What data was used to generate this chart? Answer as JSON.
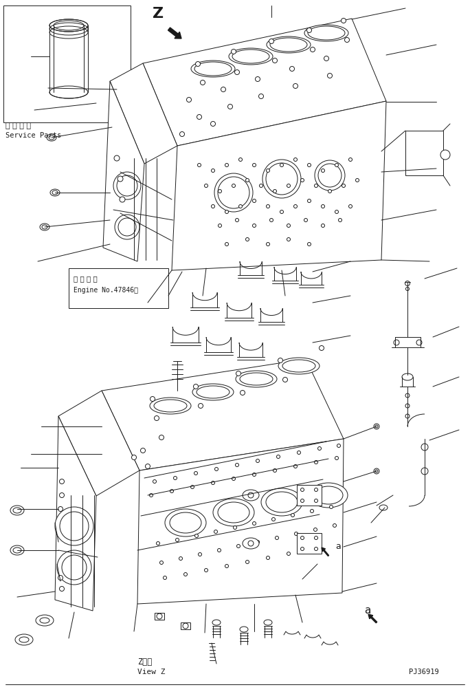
{
  "bg_color": "#ffffff",
  "line_color": "#1a1a1a",
  "fig_width": 6.84,
  "fig_height": 10.09,
  "dpi": 100,
  "title_jp": "補 給 専 用",
  "title_en": "Service Parts",
  "engine_jp": "適 用 号 機",
  "engine_en": "Engine No.47846～",
  "view_jp": "Z　視",
  "view_en": "View Z",
  "part_number": "PJ36919",
  "label_a": "a",
  "label_z": "Z"
}
